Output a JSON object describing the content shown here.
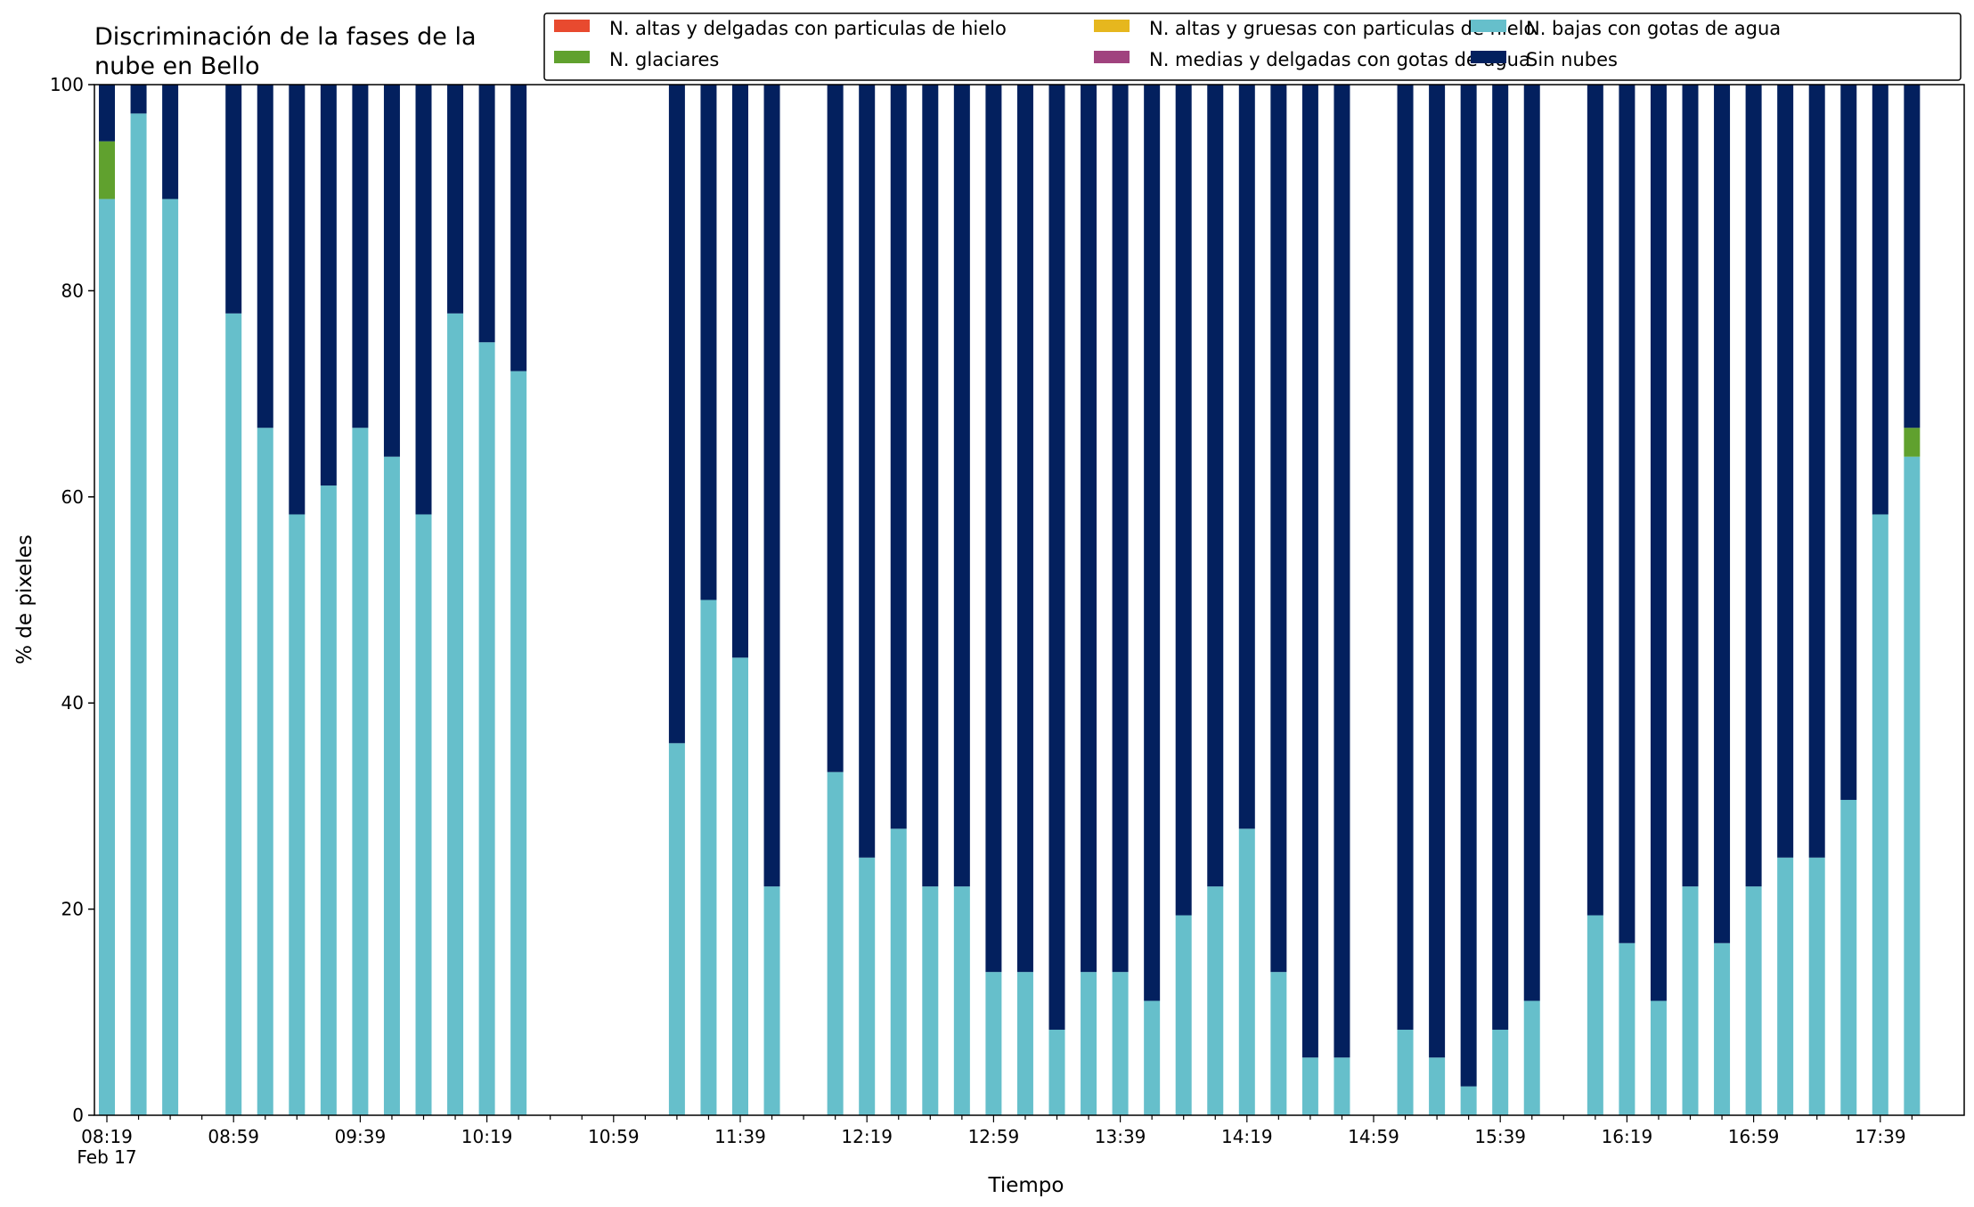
{
  "chart_data": {
    "type": "bar",
    "stacked": true,
    "title_lines": [
      "Discriminación de la fases de la",
      "nube en Bello"
    ],
    "xlabel": "Tiempo",
    "ylabel": "% de pixeles",
    "ylim": [
      0,
      100
    ],
    "yticks": [
      0,
      20,
      40,
      60,
      80,
      100
    ],
    "grid": false,
    "legend_position": "top-right",
    "xtick_labels": [
      "08:19",
      "08:59",
      "09:39",
      "10:19",
      "10:59",
      "11:39",
      "12:19",
      "12:59",
      "13:39",
      "14:19",
      "14:59",
      "15:39",
      "16:19",
      "16:59",
      "17:39"
    ],
    "xtick_sublabel": "Feb 17",
    "x": [
      "08:19",
      "08:29",
      "08:39",
      "08:49",
      "08:59",
      "09:09",
      "09:19",
      "09:29",
      "09:39",
      "09:49",
      "09:59",
      "10:09",
      "10:19",
      "10:29",
      "10:39",
      "10:49",
      "10:59",
      "11:09",
      "11:19",
      "11:29",
      "11:39",
      "11:49",
      "11:59",
      "12:09",
      "12:19",
      "12:29",
      "12:39",
      "12:49",
      "12:59",
      "13:09",
      "13:19",
      "13:29",
      "13:39",
      "13:49",
      "13:59",
      "14:09",
      "14:19",
      "14:29",
      "14:39",
      "14:49",
      "14:59",
      "15:09",
      "15:19",
      "15:29",
      "15:39",
      "15:49",
      "15:59",
      "16:09",
      "16:19",
      "16:29",
      "16:39",
      "16:49",
      "16:59",
      "17:09",
      "17:19",
      "17:29",
      "17:39",
      "17:49"
    ],
    "series": [
      {
        "name": "N. altas y delgadas con particulas de hielo",
        "color": "#e84a2f",
        "values": [
          0,
          0,
          0,
          null,
          0,
          0,
          0,
          0,
          0,
          0,
          0,
          0,
          0,
          0,
          null,
          null,
          null,
          null,
          0,
          0,
          0,
          0,
          null,
          0,
          0,
          0,
          0,
          0,
          0,
          0,
          0,
          0,
          0,
          0,
          0,
          0,
          0,
          0,
          0,
          0,
          null,
          0,
          0,
          0,
          0,
          0,
          null,
          0,
          0,
          0,
          0,
          0,
          0,
          0,
          0,
          0,
          0,
          0
        ]
      },
      {
        "name": "N. altas y gruesas con particulas de hielo",
        "color": "#e6b71e",
        "values": [
          0,
          0,
          0,
          null,
          0,
          0,
          0,
          0,
          0,
          0,
          0,
          0,
          0,
          0,
          null,
          null,
          null,
          null,
          0,
          0,
          0,
          0,
          null,
          0,
          0,
          0,
          0,
          0,
          0,
          0,
          0,
          0,
          0,
          0,
          0,
          0,
          0,
          0,
          0,
          0,
          null,
          0,
          0,
          0,
          0,
          0,
          null,
          0,
          0,
          0,
          0,
          0,
          0,
          0,
          0,
          0,
          0,
          0
        ]
      },
      {
        "name": "N. bajas con gotas de agua",
        "color": "#66bfcb",
        "values": [
          88.9,
          97.2,
          88.9,
          null,
          77.8,
          66.7,
          58.3,
          61.1,
          66.7,
          63.9,
          58.3,
          77.8,
          75.0,
          72.2,
          null,
          null,
          null,
          null,
          36.1,
          50.0,
          44.4,
          22.2,
          null,
          33.3,
          25.0,
          27.8,
          22.2,
          22.2,
          13.9,
          13.9,
          8.3,
          13.9,
          13.9,
          11.1,
          19.4,
          22.2,
          27.8,
          13.9,
          5.6,
          5.6,
          null,
          8.3,
          5.6,
          2.8,
          8.3,
          11.1,
          null,
          19.4,
          16.7,
          11.1,
          22.2,
          16.7,
          22.2,
          25.0,
          25.0,
          30.6,
          58.3,
          63.9
        ]
      },
      {
        "name": "N. glaciares",
        "color": "#60a12e",
        "values": [
          5.6,
          0,
          0,
          null,
          0,
          0,
          0,
          0,
          0,
          0,
          0,
          0,
          0,
          0,
          null,
          null,
          null,
          null,
          0,
          0,
          0,
          0,
          null,
          0,
          0,
          0,
          0,
          0,
          0,
          0,
          0,
          0,
          0,
          0,
          0,
          0,
          0,
          0,
          0,
          0,
          null,
          0,
          0,
          0,
          0,
          0,
          null,
          0,
          0,
          0,
          0,
          0,
          0,
          0,
          0,
          0,
          0,
          2.8
        ]
      },
      {
        "name": "N. medias y delgadas con gotas de agua",
        "color": "#a0427e",
        "values": [
          0,
          0,
          0,
          null,
          0,
          0,
          0,
          0,
          0,
          0,
          0,
          0,
          0,
          0,
          null,
          null,
          null,
          null,
          0,
          0,
          0,
          0,
          null,
          0,
          0,
          0,
          0,
          0,
          0,
          0,
          0,
          0,
          0,
          0,
          0,
          0,
          0,
          0,
          0,
          0,
          null,
          0,
          0,
          0,
          0,
          0,
          null,
          0,
          0,
          0,
          0,
          0,
          0,
          0,
          0,
          0,
          0,
          0
        ]
      },
      {
        "name": "Sin nubes",
        "color": "#03205e",
        "values": [
          5.5,
          2.8,
          11.1,
          null,
          22.2,
          33.3,
          41.7,
          38.9,
          33.3,
          36.1,
          41.7,
          22.2,
          25.0,
          27.8,
          null,
          null,
          null,
          null,
          63.9,
          50.0,
          55.6,
          77.8,
          null,
          66.7,
          75.0,
          72.2,
          77.8,
          77.8,
          86.1,
          86.1,
          91.7,
          86.1,
          86.1,
          88.9,
          80.6,
          77.8,
          72.2,
          86.1,
          94.4,
          94.4,
          null,
          91.7,
          94.4,
          97.2,
          91.7,
          88.9,
          null,
          80.6,
          83.3,
          88.9,
          77.8,
          83.3,
          77.8,
          75.0,
          75.0,
          69.4,
          41.7,
          33.3
        ]
      }
    ]
  }
}
